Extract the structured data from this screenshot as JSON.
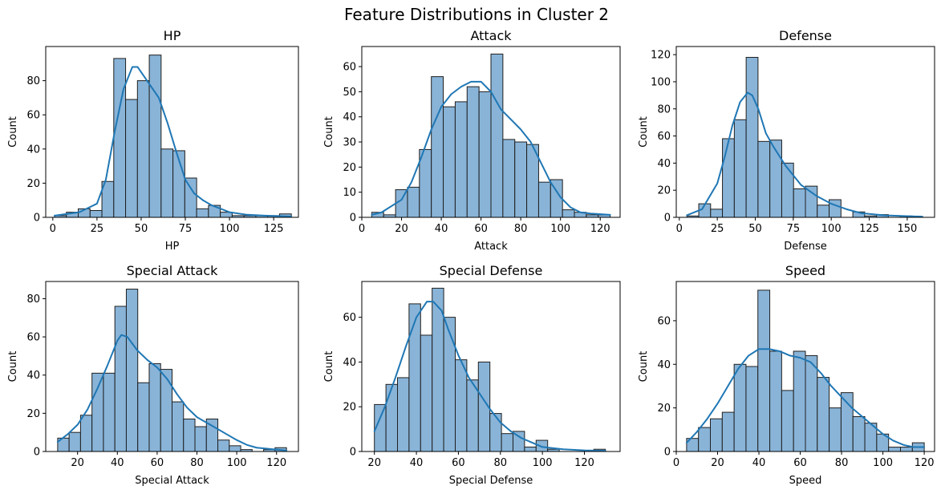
{
  "figure": {
    "title": "Feature Distributions in Cluster 2",
    "bar_color": "#89b4d8",
    "edge_color": "#1f1f1f",
    "kde_color": "#1f77b4"
  },
  "chart_data": [
    {
      "type": "bar",
      "title": "HP",
      "xlabel": "HP",
      "ylabel": "Count",
      "xlim": [
        -4,
        139
      ],
      "ylim": [
        0,
        100
      ],
      "xticks": [
        0,
        25,
        50,
        75,
        100,
        125
      ],
      "yticks": [
        0,
        20,
        40,
        60,
        80
      ],
      "bin_edges": [
        1,
        7.7,
        14.4,
        21.1,
        27.8,
        34.5,
        41.2,
        47.9,
        54.6,
        61.3,
        68,
        74.7,
        81.4,
        88.1,
        94.8,
        101.5,
        108.2,
        114.9,
        121.6,
        128.3,
        135
      ],
      "counts": [
        1,
        3,
        5,
        4,
        21,
        93,
        69,
        80,
        95,
        40,
        39,
        23,
        5,
        7,
        3,
        1,
        1,
        1,
        1,
        2
      ],
      "kde": {
        "x": [
          1,
          15,
          25,
          30,
          35,
          40,
          45,
          48,
          52,
          56,
          60,
          65,
          70,
          75,
          80,
          85,
          90,
          100,
          110,
          120,
          135
        ],
        "y": [
          1,
          3,
          8,
          22,
          50,
          75,
          88,
          88,
          82,
          76,
          70,
          55,
          38,
          22,
          14,
          10,
          7,
          3,
          1.5,
          1,
          0.5
        ]
      }
    },
    {
      "type": "bar",
      "title": "Attack",
      "xlabel": "Attack",
      "ylabel": "Count",
      "xlim": [
        0,
        130
      ],
      "ylim": [
        0,
        68
      ],
      "xticks": [
        0,
        20,
        40,
        60,
        80,
        100,
        120
      ],
      "yticks": [
        0,
        10,
        20,
        30,
        40,
        50,
        60
      ],
      "bin_edges": [
        5,
        11,
        17,
        23,
        29,
        35,
        41,
        47,
        53,
        59,
        65,
        71,
        77,
        83,
        89,
        95,
        101,
        107,
        113,
        119,
        125
      ],
      "counts": [
        2,
        1,
        11,
        12,
        27,
        56,
        44,
        46,
        52,
        50,
        65,
        31,
        30,
        29,
        14,
        15,
        3,
        2,
        1,
        1
      ],
      "kde": {
        "x": [
          5,
          10,
          20,
          25,
          30,
          35,
          40,
          45,
          50,
          55,
          60,
          65,
          70,
          75,
          80,
          85,
          90,
          95,
          100,
          105,
          110,
          115,
          125
        ],
        "y": [
          1,
          2,
          7,
          14,
          24,
          35,
          44,
          49,
          52,
          54,
          54,
          50,
          43,
          39,
          35,
          30,
          22,
          14,
          8,
          4,
          2,
          1.5,
          1
        ]
      }
    },
    {
      "type": "bar",
      "title": "Defense",
      "xlabel": "Defense",
      "ylabel": "Count",
      "xlim": [
        -2,
        168
      ],
      "ylim": [
        0,
        126
      ],
      "xticks": [
        0,
        25,
        50,
        75,
        100,
        125,
        150
      ],
      "yticks": [
        0,
        20,
        40,
        60,
        80,
        100,
        120
      ],
      "bin_edges": [
        5,
        12.8,
        20.6,
        28.4,
        36.2,
        44,
        51.8,
        59.6,
        67.4,
        75.2,
        83,
        90.8,
        98.6,
        106.4,
        114.2,
        122,
        129.8,
        137.6,
        145.4,
        153.2,
        161
      ],
      "counts": [
        1,
        10,
        6,
        58,
        72,
        118,
        56,
        57,
        40,
        21,
        23,
        9,
        13,
        0,
        4,
        1,
        2,
        0,
        1,
        0
      ],
      "kde": {
        "x": [
          5,
          15,
          25,
          30,
          35,
          40,
          45,
          48,
          52,
          57,
          62,
          70,
          80,
          90,
          100,
          110,
          120,
          135,
          160
        ],
        "y": [
          1.5,
          6,
          25,
          45,
          68,
          85,
          92,
          90,
          80,
          62,
          52,
          38,
          24,
          16,
          10,
          6,
          3,
          1.5,
          0.5
        ]
      }
    },
    {
      "type": "bar",
      "title": "Special Attack",
      "xlabel": "Special Attack",
      "ylabel": "Count",
      "xlim": [
        4,
        131
      ],
      "ylim": [
        0,
        89
      ],
      "xticks": [
        20,
        40,
        60,
        80,
        100,
        120
      ],
      "yticks": [
        0,
        20,
        40,
        60,
        80
      ],
      "bin_edges": [
        10,
        15.75,
        21.5,
        27.25,
        33,
        38.75,
        44.5,
        50.25,
        56,
        61.75,
        67.5,
        73.25,
        79,
        84.75,
        90.5,
        96.25,
        102,
        107.75,
        113.5,
        119.25,
        125
      ],
      "counts": [
        7,
        10,
        19,
        41,
        41,
        76,
        85,
        36,
        46,
        43,
        26,
        17,
        13,
        17,
        6,
        3,
        1,
        0,
        1,
        2
      ],
      "kde": {
        "x": [
          10,
          15,
          20,
          25,
          30,
          35,
          40,
          42,
          45,
          50,
          55,
          60,
          65,
          70,
          75,
          80,
          85,
          90,
          95,
          100,
          105,
          110,
          120,
          125
        ],
        "y": [
          5,
          9,
          14,
          22,
          33,
          45,
          58,
          61,
          60,
          53,
          48,
          44,
          38,
          30,
          23,
          18,
          15,
          12,
          9,
          6,
          3.5,
          2,
          1,
          0.5
        ]
      }
    },
    {
      "type": "bar",
      "title": "Special Defense",
      "xlabel": "Special Defense",
      "ylabel": "Count",
      "xlim": [
        14,
        137
      ],
      "ylim": [
        0,
        76
      ],
      "xticks": [
        20,
        40,
        60,
        80,
        100,
        120
      ],
      "yticks": [
        0,
        20,
        40,
        60
      ],
      "bin_edges": [
        20,
        25.5,
        31,
        36.5,
        42,
        47.5,
        53,
        58.5,
        64,
        69.5,
        75,
        80.5,
        86,
        91.5,
        97,
        102.5,
        108,
        113.5,
        119,
        124.5,
        130
      ],
      "counts": [
        21,
        30,
        33,
        66,
        52,
        73,
        60,
        41,
        32,
        40,
        17,
        8,
        9,
        2,
        5,
        1,
        0,
        0,
        0,
        1
      ],
      "kde": {
        "x": [
          20,
          25,
          30,
          35,
          40,
          45,
          48,
          52,
          55,
          60,
          65,
          70,
          75,
          80,
          85,
          90,
          95,
          100,
          110,
          120,
          130
        ],
        "y": [
          9,
          20,
          33,
          47,
          60,
          67,
          67,
          63,
          55,
          43,
          33,
          26,
          19,
          13,
          9,
          6,
          4,
          2,
          1,
          0.5,
          0.3
        ]
      }
    },
    {
      "type": "bar",
      "title": "Speed",
      "xlabel": "Speed",
      "ylabel": "Count",
      "xlim": [
        0,
        125
      ],
      "ylim": [
        0,
        78
      ],
      "xticks": [
        0,
        20,
        40,
        60,
        80,
        100,
        120
      ],
      "yticks": [
        0,
        20,
        40,
        60
      ],
      "bin_edges": [
        5,
        10.75,
        16.5,
        22.25,
        28,
        33.75,
        39.5,
        45.25,
        51,
        56.75,
        62.5,
        68.25,
        74,
        79.75,
        85.5,
        91.25,
        97,
        102.75,
        108.5,
        114.25,
        120
      ],
      "counts": [
        6,
        11,
        15,
        18,
        40,
        39,
        74,
        46,
        28,
        46,
        44,
        34,
        20,
        27,
        16,
        13,
        8,
        2,
        2,
        4
      ],
      "kde": {
        "x": [
          5,
          10,
          15,
          20,
          25,
          30,
          35,
          40,
          45,
          50,
          55,
          60,
          65,
          70,
          75,
          80,
          85,
          90,
          95,
          100,
          105,
          110,
          115,
          120
        ],
        "y": [
          4,
          9,
          15,
          22,
          30,
          38,
          44,
          47,
          47,
          46,
          44,
          43,
          41,
          36,
          30,
          25,
          20,
          16,
          12,
          8,
          5,
          3,
          2,
          2
        ]
      }
    }
  ]
}
